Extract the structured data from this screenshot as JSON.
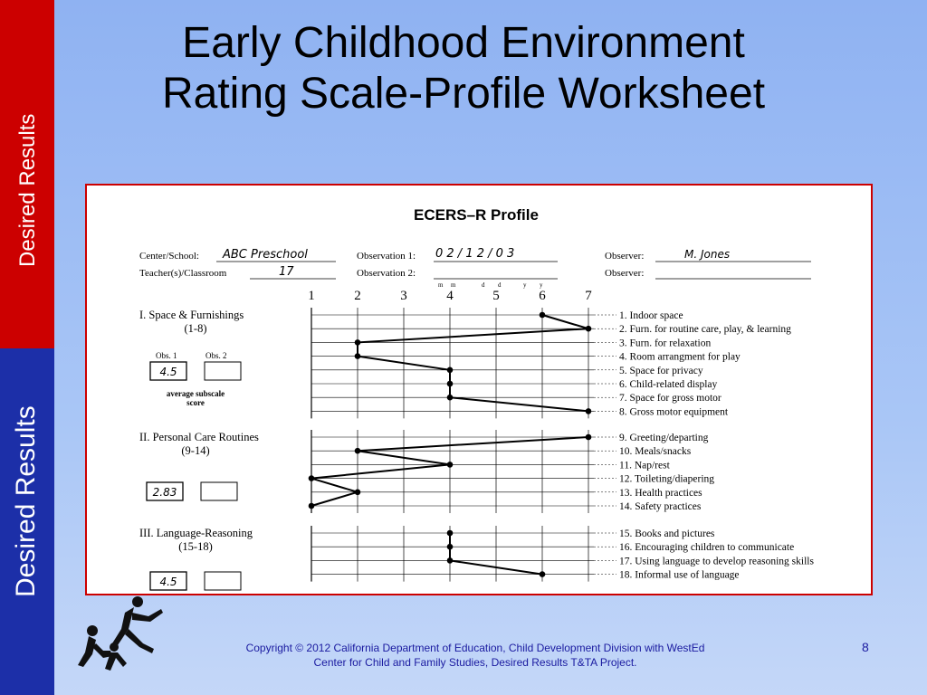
{
  "sidebar": {
    "top_label": "Desired Results",
    "bottom_label": "Desired Results"
  },
  "slide": {
    "title_line1": "Early Childhood Environment",
    "title_line2": "Rating Scale-Profile Worksheet",
    "copyright_line1": "Copyright © 2012 California Department of Education, Child Development Division with WestEd",
    "copyright_line2": "Center for Child and Family Studies, Desired Results T&TA Project.",
    "page_number": "8"
  },
  "worksheet": {
    "heading": "ECERS–R Profile",
    "center_label": "Center/School:",
    "center_value": "ABC Preschool",
    "teacher_label": "Teacher(s)/Classroom",
    "teacher_value": "17",
    "obs1_label": "Observation 1:",
    "obs1_value": "0 2 / 1 2 / 0 3",
    "obs2_label": "Observation 2:",
    "date_mm": "m",
    "date_dd": "d",
    "date_yy": "y",
    "observer1_label": "Observer:",
    "observer1_value": "M. Jones",
    "observer2_label": "Observer:",
    "obs1_box_label": "Obs. 1",
    "obs2_box_label": "Obs. 2",
    "avg_label_line1": "average subscale",
    "avg_label_line2": "score"
  },
  "chart_data": {
    "type": "line",
    "xlim": [
      1,
      7
    ],
    "x_ticks": [
      "1",
      "2",
      "3",
      "4",
      "5",
      "6",
      "7"
    ],
    "subscales": [
      {
        "name": "I. Space & Furnishings",
        "range": "(1-8)",
        "score": "4.5",
        "items": [
          {
            "label": "1.   Indoor space",
            "value": 6
          },
          {
            "label": "2.   Furn. for routine care, play, & learning",
            "value": 7
          },
          {
            "label": "3.   Furn. for relaxation",
            "value": 2
          },
          {
            "label": "4.   Room arrangment for play",
            "value": 2
          },
          {
            "label": "5.   Space for privacy",
            "value": 4
          },
          {
            "label": "6.   Child-related display",
            "value": 4
          },
          {
            "label": "7.   Space for gross motor",
            "value": 4
          },
          {
            "label": "8.   Gross motor equipment",
            "value": 7
          }
        ]
      },
      {
        "name": "II. Personal Care Routines",
        "range": "(9-14)",
        "score": "2.83",
        "items": [
          {
            "label": "9.   Greeting/departing",
            "value": 7
          },
          {
            "label": "10.  Meals/snacks",
            "value": 2
          },
          {
            "label": "11.  Nap/rest",
            "value": 4
          },
          {
            "label": "12.  Toileting/diapering",
            "value": 1
          },
          {
            "label": "13.  Health practices",
            "value": 2
          },
          {
            "label": "14.  Safety practices",
            "value": 1
          }
        ]
      },
      {
        "name": "III. Language-Reasoning",
        "range": "(15-18)",
        "score": "4.5",
        "items": [
          {
            "label": "15.  Books and pictures",
            "value": 4
          },
          {
            "label": "16.  Encouraging children to communicate",
            "value": 4
          },
          {
            "label": "17.  Using language to develop reasoning skills",
            "value": 4
          },
          {
            "label": "18.  Informal use of language",
            "value": 6
          }
        ]
      }
    ]
  }
}
